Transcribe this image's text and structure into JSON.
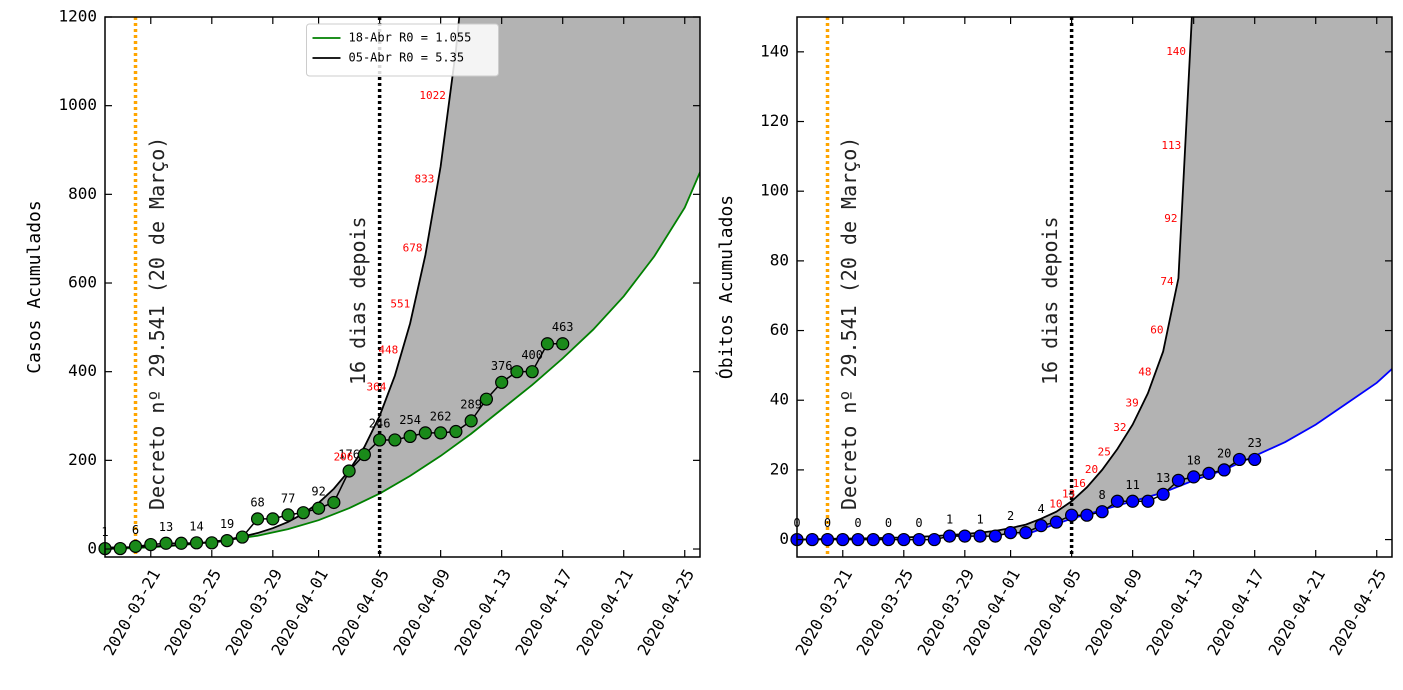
{
  "chart_data": [
    {
      "type": "line",
      "y_label": "Casos Acumulados",
      "xlim": [
        "2020-03-18",
        "2020-04-26"
      ],
      "ylim": [
        -18,
        1200
      ],
      "xticks": [
        "2020-03-21",
        "2020-03-25",
        "2020-03-29",
        "2020-04-01",
        "2020-04-05",
        "2020-04-09",
        "2020-04-13",
        "2020-04-17",
        "2020-04-21",
        "2020-04-25"
      ],
      "yticks": [
        0,
        200,
        400,
        600,
        800,
        1000,
        1200
      ],
      "fill_color": "#b3b3b3",
      "legend": "upper center",
      "x": [
        "2020-03-18",
        "2020-03-19",
        "2020-03-20",
        "2020-03-21",
        "2020-03-22",
        "2020-03-23",
        "2020-03-24",
        "2020-03-25",
        "2020-03-26",
        "2020-03-27",
        "2020-03-28",
        "2020-03-29",
        "2020-03-30",
        "2020-03-31",
        "2020-04-01",
        "2020-04-02",
        "2020-04-03",
        "2020-04-04",
        "2020-04-05",
        "2020-04-06",
        "2020-04-07",
        "2020-04-08",
        "2020-04-09",
        "2020-04-10",
        "2020-04-11",
        "2020-04-12",
        "2020-04-13",
        "2020-04-14",
        "2020-04-15",
        "2020-04-16",
        "2020-04-17"
      ],
      "series": [
        {
          "color": "#1a8a1a",
          "edge_color": "black",
          "marker": true,
          "values": [
            1,
            1,
            6,
            10,
            13,
            13,
            14,
            14,
            19,
            27,
            68,
            68,
            77,
            82,
            92,
            105,
            176,
            213,
            246,
            246,
            254,
            262,
            262,
            265,
            289,
            338,
            376,
            400,
            400,
            463,
            463
          ]
        },
        {
          "name": "18-Abr R0 = 1.055",
          "color": "green",
          "x": [
            "2020-03-18",
            "2020-03-20",
            "2020-03-22",
            "2020-03-24",
            "2020-03-26",
            "2020-03-28",
            "2020-03-30",
            "2020-04-01",
            "2020-04-03",
            "2020-04-05",
            "2020-04-07",
            "2020-04-09",
            "2020-04-11",
            "2020-04-13",
            "2020-04-15",
            "2020-04-17",
            "2020-04-19",
            "2020-04-21",
            "2020-04-23",
            "2020-04-25",
            "2020-04-26"
          ],
          "values": [
            0,
            2,
            6,
            12,
            20,
            30,
            45,
            65,
            92,
            125,
            165,
            210,
            260,
            315,
            370,
            430,
            495,
            570,
            660,
            770,
            850
          ]
        },
        {
          "name": "05-Abr R0 = 5.35",
          "color": "black",
          "x": [
            "2020-03-18",
            "2020-03-19",
            "2020-03-20",
            "2020-03-21",
            "2020-03-22",
            "2020-03-23",
            "2020-03-24",
            "2020-03-25",
            "2020-03-26",
            "2020-03-27",
            "2020-03-28",
            "2020-03-29",
            "2020-03-30",
            "2020-03-31",
            "2020-04-01",
            "2020-04-02",
            "2020-04-03",
            "2020-04-04",
            "2020-04-05",
            "2020-04-06",
            "2020-04-07",
            "2020-04-08",
            "2020-04-09",
            "2020-04-10",
            "2020-04-11"
          ],
          "values": [
            3,
            4,
            4,
            6,
            7,
            10,
            13,
            16,
            21,
            28,
            36,
            47,
            61,
            80,
            104,
            136,
            177,
            230,
            300,
            391,
            509,
            663,
            863,
            1125,
            1465
          ]
        }
      ],
      "projection_labels": {
        "color": "red",
        "values": [
          206,
          364,
          448,
          551,
          678,
          833,
          1022
        ]
      },
      "vlines": [
        {
          "x": "2020-03-20",
          "color": "orange",
          "label": "Decreto nº 29.541 (20 de Março)"
        },
        {
          "x": "2020-04-05",
          "color": "black",
          "label": "16 dias depois"
        }
      ]
    },
    {
      "type": "line",
      "y_label": "Óbitos Acumulados",
      "xlim": [
        "2020-03-18",
        "2020-04-26"
      ],
      "ylim": [
        -5,
        150
      ],
      "xticks": [
        "2020-03-21",
        "2020-03-25",
        "2020-03-29",
        "2020-04-01",
        "2020-04-05",
        "2020-04-09",
        "2020-04-13",
        "2020-04-17",
        "2020-04-21",
        "2020-04-25"
      ],
      "yticks": [
        0,
        20,
        40,
        60,
        80,
        100,
        120,
        140
      ],
      "fill_color": "#b3b3b3",
      "x": [
        "2020-03-18",
        "2020-03-19",
        "2020-03-20",
        "2020-03-21",
        "2020-03-22",
        "2020-03-23",
        "2020-03-24",
        "2020-03-25",
        "2020-03-26",
        "2020-03-27",
        "2020-03-28",
        "2020-03-29",
        "2020-03-30",
        "2020-03-31",
        "2020-04-01",
        "2020-04-02",
        "2020-04-03",
        "2020-04-04",
        "2020-04-05",
        "2020-04-06",
        "2020-04-07",
        "2020-04-08",
        "2020-04-09",
        "2020-04-10",
        "2020-04-11",
        "2020-04-12",
        "2020-04-13",
        "2020-04-14",
        "2020-04-15",
        "2020-04-16",
        "2020-04-17"
      ],
      "series": [
        {
          "color": "blue",
          "edge_color": "black",
          "marker": true,
          "values": [
            0,
            0,
            0,
            0,
            0,
            0,
            0,
            0,
            0,
            0,
            1,
            1,
            1,
            1,
            2,
            2,
            4,
            5,
            7,
            7,
            8,
            11,
            11,
            11,
            13,
            17,
            18,
            19,
            20,
            23,
            23
          ]
        },
        {
          "color": "blue",
          "x": [
            "2020-04-02",
            "2020-04-03",
            "2020-04-04",
            "2020-04-05",
            "2020-04-07",
            "2020-04-09",
            "2020-04-11",
            "2020-04-13",
            "2020-04-15",
            "2020-04-17",
            "2020-04-19",
            "2020-04-21",
            "2020-04-23",
            "2020-04-25",
            "2020-04-26"
          ],
          "values": [
            1.5,
            3,
            4.5,
            6,
            8.5,
            11,
            13.5,
            17,
            20,
            24,
            28,
            33,
            39,
            45,
            49
          ]
        },
        {
          "color": "black",
          "x": [
            "2020-03-18",
            "2020-03-19",
            "2020-03-20",
            "2020-03-21",
            "2020-03-22",
            "2020-03-23",
            "2020-03-24",
            "2020-03-25",
            "2020-03-26",
            "2020-03-27",
            "2020-03-28",
            "2020-03-29",
            "2020-03-30",
            "2020-03-31",
            "2020-04-01",
            "2020-04-02",
            "2020-04-03",
            "2020-04-04",
            "2020-04-05",
            "2020-04-06",
            "2020-04-07",
            "2020-04-08",
            "2020-04-09",
            "2020-04-10",
            "2020-04-11",
            "2020-04-12",
            "2020-04-13"
          ],
          "values": [
            0,
            0.1,
            0.2,
            0.3,
            0.3,
            0.4,
            0.5,
            0.6,
            0.8,
            1,
            1.3,
            1.6,
            2,
            2.5,
            3.3,
            4.3,
            6,
            8,
            11,
            15,
            20,
            26,
            33,
            42,
            54,
            75,
            160
          ]
        }
      ],
      "projection_labels": {
        "color": "red",
        "values": [
          10,
          13,
          16,
          20,
          25,
          32,
          39,
          48,
          60,
          74,
          92,
          113,
          140
        ]
      },
      "vlines": [
        {
          "x": "2020-03-20",
          "color": "orange",
          "label": "Decreto nº 29.541 (20 de Março)"
        },
        {
          "x": "2020-04-05",
          "color": "black",
          "label": "16 dias depois"
        }
      ]
    }
  ]
}
